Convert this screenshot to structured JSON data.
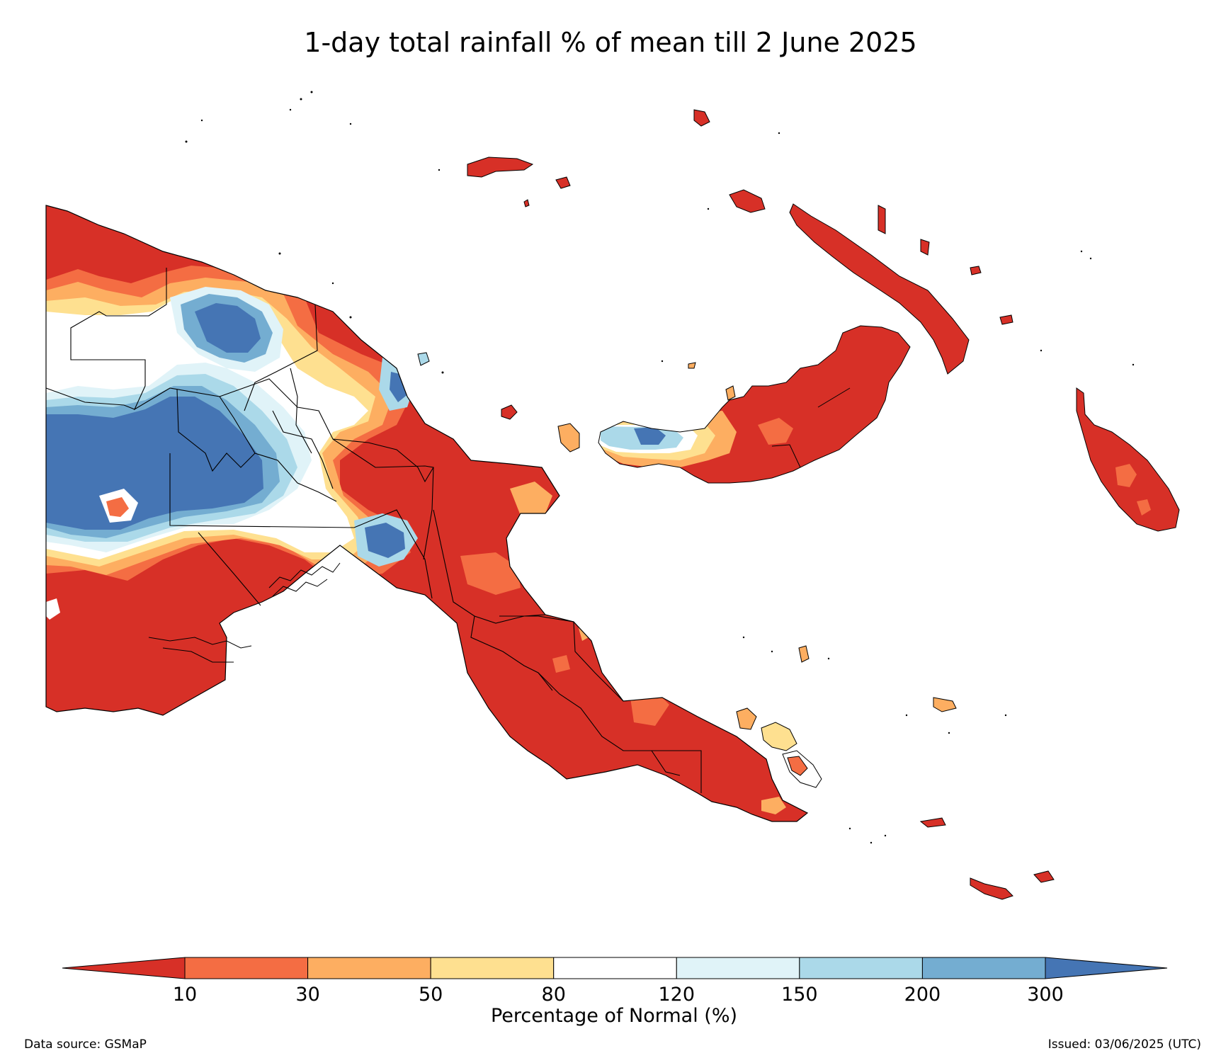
{
  "title": "1-day total rainfall % of mean till 2 June 2025",
  "colorbar": {
    "label": "Percentage of Normal (%)",
    "ticks": [
      "10",
      "30",
      "50",
      "80",
      "120",
      "150",
      "200",
      "300"
    ],
    "colors": {
      "below_10": "#d73027",
      "10_30": "#f46d43",
      "30_50": "#fdae61",
      "50_80": "#fee090",
      "80_120": "#ffffff",
      "120_150": "#e0f3f8",
      "150_200": "#abd9e9",
      "200_300": "#74add1",
      "above_300": "#4575b4"
    }
  },
  "footer": {
    "source": "Data source: GSMaP",
    "issued": "Issued: 03/06/2025 (UTC)"
  }
}
